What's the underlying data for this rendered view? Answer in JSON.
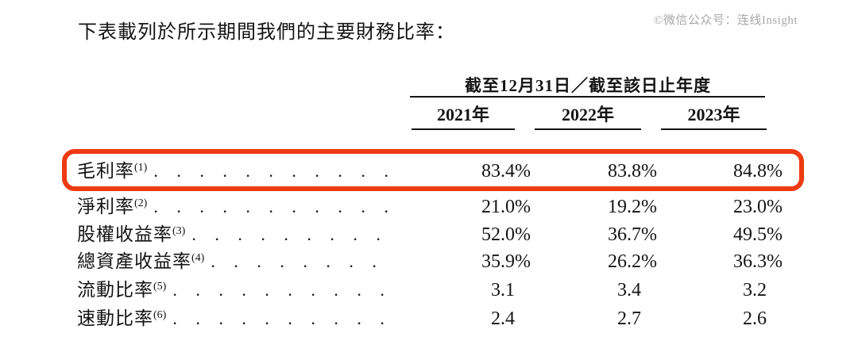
{
  "page": {
    "title": "下表載列於所示期間我們的主要財務比率：",
    "watermark": "©微信公众号：连线Insight"
  },
  "table": {
    "period_header": "截至12月31日／截至該日止年度",
    "columns": [
      "2021年",
      "2022年",
      "2023年"
    ],
    "rows": [
      {
        "label": "毛利率",
        "footnote": "(1)",
        "values": [
          "83.4%",
          "83.8%",
          "84.8%"
        ],
        "highlighted": true
      },
      {
        "label": "淨利率",
        "footnote": "(2)",
        "values": [
          "21.0%",
          "19.2%",
          "23.0%"
        ],
        "highlighted": false
      },
      {
        "label": "股權收益率",
        "footnote": "(3)",
        "values": [
          "52.0%",
          "36.7%",
          "49.5%"
        ],
        "highlighted": false
      },
      {
        "label": "總資產收益率",
        "footnote": "(4)",
        "values": [
          "35.9%",
          "26.2%",
          "36.3%"
        ],
        "highlighted": false
      },
      {
        "label": "流動比率",
        "footnote": "(5)",
        "values": [
          "3.1",
          "3.4",
          "3.2"
        ],
        "highlighted": false
      },
      {
        "label": "速動比率",
        "footnote": "(6)",
        "values": [
          "2.4",
          "2.7",
          "2.6"
        ],
        "highlighted": false
      }
    ],
    "highlight_color": "#ee3a12"
  }
}
